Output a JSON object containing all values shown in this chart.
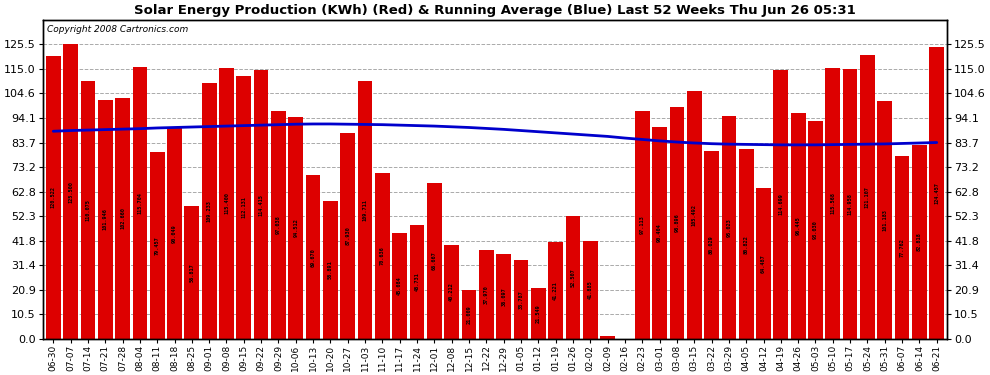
{
  "title": "Solar Energy Production (KWh) (Red) & Running Average (Blue) Last 52 Weeks Thu Jun 26 05:31",
  "copyright": "Copyright 2008 Cartronics.com",
  "bar_color": "#dd0000",
  "line_color": "#0000cc",
  "background_color": "#ffffff",
  "grid_color": "#aaaaaa",
  "ylim": [
    0,
    136
  ],
  "yticks": [
    0.0,
    10.5,
    20.9,
    31.4,
    41.8,
    52.3,
    62.8,
    73.2,
    83.7,
    94.1,
    104.6,
    115.0,
    125.5
  ],
  "dates": [
    "06-30",
    "07-07",
    "07-14",
    "07-21",
    "07-28",
    "08-04",
    "08-11",
    "08-18",
    "08-25",
    "09-01",
    "09-08",
    "09-15",
    "09-22",
    "09-29",
    "10-06",
    "10-13",
    "10-20",
    "10-27",
    "11-03",
    "11-10",
    "11-17",
    "11-24",
    "12-01",
    "12-08",
    "12-15",
    "12-22",
    "12-29",
    "01-05",
    "01-12",
    "01-19",
    "01-26",
    "02-02",
    "02-09",
    "02-16",
    "02-23",
    "03-01",
    "03-08",
    "03-15",
    "03-22",
    "03-29",
    "04-05",
    "04-12",
    "04-19",
    "04-26",
    "05-03",
    "05-10",
    "05-17",
    "05-24",
    "05-31",
    "06-07",
    "06-14",
    "06-21"
  ],
  "values": [
    120.522,
    125.5,
    110.075,
    101.946,
    102.66,
    115.704,
    79.457,
    90.049,
    56.817,
    109.233,
    115.4,
    112.131,
    114.415,
    97.038,
    94.512,
    69.67,
    58.891,
    87.93,
    109.711,
    70.636,
    45.084,
    48.731,
    66.667,
    40.212,
    21.009,
    37.97,
    36.097,
    33.787,
    21.549,
    41.221,
    52.507,
    41.885,
    1.413,
    0.0,
    97.113,
    90.404,
    98.896,
    105.492,
    80.029,
    95.023,
    80.822,
    64.487,
    114.699,
    96.445,
    93.03,
    115.568,
    114.958,
    121.107,
    101.183,
    77.762,
    82.818,
    124.457
  ],
  "running_avg": [
    88.5,
    88.8,
    89.0,
    89.2,
    89.4,
    89.6,
    89.9,
    90.1,
    90.3,
    90.5,
    90.7,
    90.9,
    91.1,
    91.3,
    91.5,
    91.6,
    91.6,
    91.5,
    91.4,
    91.3,
    91.1,
    90.9,
    90.7,
    90.4,
    90.1,
    89.7,
    89.3,
    88.8,
    88.3,
    87.8,
    87.3,
    86.8,
    86.3,
    85.6,
    85.0,
    84.4,
    83.9,
    83.5,
    83.2,
    83.0,
    82.9,
    82.8,
    82.7,
    82.7,
    82.7,
    82.8,
    82.9,
    83.0,
    83.1,
    83.3,
    83.5,
    83.7
  ]
}
